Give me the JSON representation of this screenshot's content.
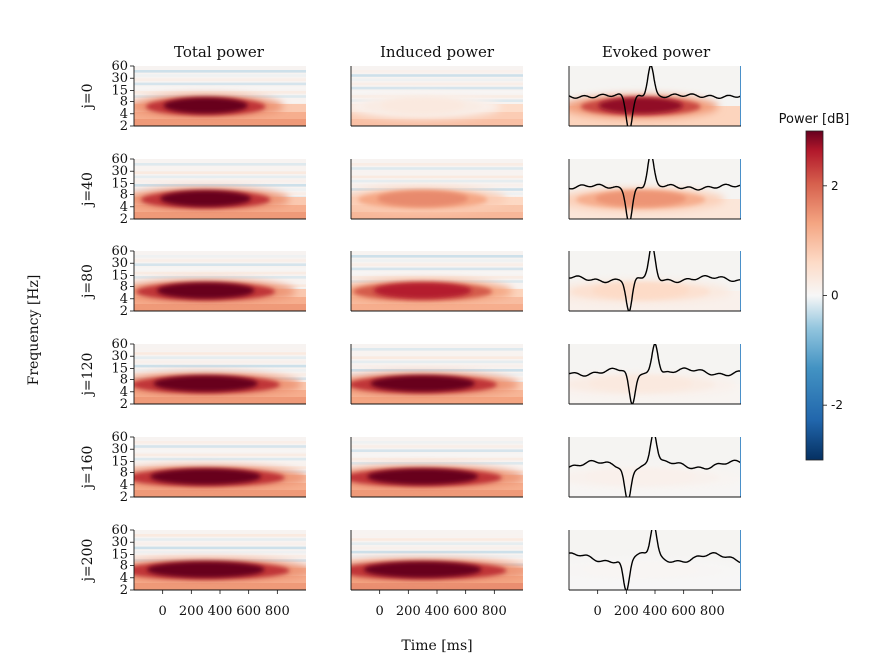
{
  "chart_data": {
    "type": "heatmap",
    "columns": [
      "Total power",
      "Induced power",
      "Evoked power"
    ],
    "rows": [
      "j=0",
      "j=40",
      "j=80",
      "j=120",
      "j=160",
      "j=200"
    ],
    "ylabel": "Frequency [Hz]",
    "xlabel": "Time [ms]",
    "y_ticks": [
      2,
      4,
      8,
      15,
      30,
      60
    ],
    "x_ticks": [
      0,
      200,
      400,
      600,
      800
    ],
    "xlim": [
      -200,
      1000
    ],
    "ylim": [
      2,
      60
    ],
    "y_scale": "log",
    "colorbar": {
      "title": "Power [dB]",
      "ticks": [
        2,
        0,
        -2
      ],
      "range": [
        -3,
        3
      ],
      "colormap": "RdBu_r"
    },
    "blob_peak_power_db": [
      [
        3.0,
        0.3,
        2.8
      ],
      [
        3.0,
        1.6,
        1.5
      ],
      [
        3.0,
        2.6,
        0.6
      ],
      [
        3.0,
        3.0,
        0.3
      ],
      [
        3.0,
        3.0,
        0.15
      ],
      [
        3.0,
        3.0,
        0.05
      ]
    ],
    "evoked_waveform_trough_ms": [
      220,
      220,
      220,
      240,
      210,
      200
    ],
    "evoked_waveform_peak_ms": [
      370,
      370,
      380,
      400,
      390,
      390
    ],
    "colors": {
      "max": "#67001f",
      "mid": "#f7f7f7",
      "min": "#053061",
      "trace": "#000000"
    }
  }
}
